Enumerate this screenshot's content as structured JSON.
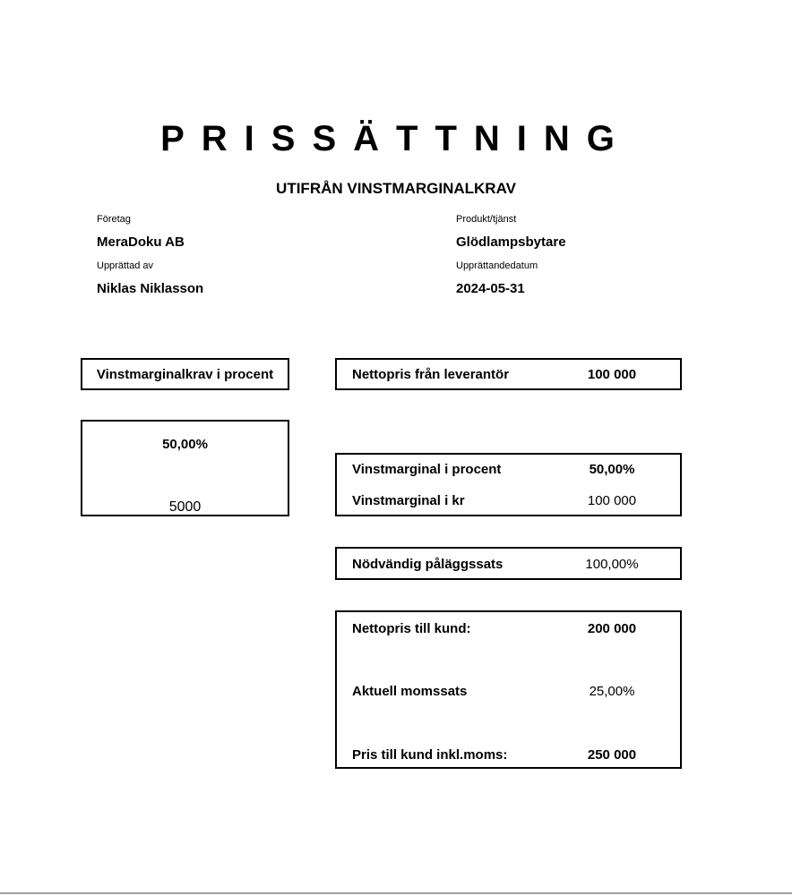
{
  "title": "PRISSÄTTNING",
  "subtitle": "UTIFRÅN VINSTMARGINALKRAV",
  "header": {
    "company_label": "Företag",
    "company": "MeraDoku AB",
    "product_label": "Produkt/tjänst",
    "product": "Glödlampsbytare",
    "author_label": "Upprättad av",
    "author": "Niklas Niklasson",
    "date_label": "Upprättandedatum",
    "date": "2024-05-31"
  },
  "left": {
    "requirement_label": "Vinstmarginalkrav i procent",
    "requirement_value": "50,00%",
    "amount": "5000"
  },
  "right": {
    "net_supplier_label": "Nettopris från leverantör",
    "net_supplier": "100 000",
    "margin_pct_label": "Vinstmarginal i procent",
    "margin_pct": "50,00%",
    "margin_kr_label": "Vinstmarginal i kr",
    "margin_kr": "100 000",
    "markup_label": "Nödvändig påläggssats",
    "markup": "100,00%",
    "net_customer_label": "Nettopris till kund:",
    "net_customer": "200 000",
    "vat_label": "Aktuell momssats",
    "vat": "25,00%",
    "price_incl_label": "Pris till kund inkl.moms:",
    "price_incl": "250 000"
  }
}
